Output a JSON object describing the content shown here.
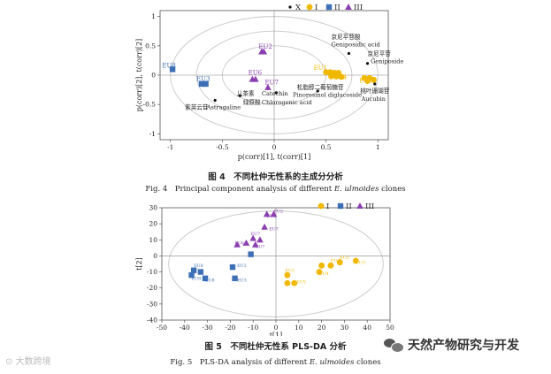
{
  "fig4": {
    "legend": [
      {
        "marker": "dot",
        "color": "#111111",
        "label": "X"
      },
      {
        "marker": "circle",
        "color": "#f0b800",
        "label": "I"
      },
      {
        "marker": "square",
        "color": "#3c6fb6",
        "label": "II"
      },
      {
        "marker": "triangle",
        "color": "#8a3fb0",
        "label": "III"
      }
    ],
    "x_axis_label": "p(corr)[1], t(corr)[1]",
    "y_axis_label": "p(corr)[2], t(corr)[2]",
    "caption_cn": "图 4　不同杜仲无性系的主成分分析",
    "caption_en_prefix": "Fig. 4　Principal component analysis of different ",
    "caption_en_species": "E. ulmoides",
    "caption_en_suffix": " clones",
    "chart_data": {
      "type": "scatter",
      "xlim": [
        -1.1,
        1.1
      ],
      "ylim": [
        -1.1,
        1.1
      ],
      "x_ticks": [
        -1,
        -0.5,
        0,
        0.5,
        1
      ],
      "y_ticks": [
        -1,
        -0.5,
        0,
        0.5,
        1
      ],
      "ellipse_radii": [
        1.0,
        0.75,
        0.5
      ],
      "series": [
        {
          "name": "I",
          "color": "#f0b800",
          "marker": "circle",
          "points": [
            [
              0.5,
              0.05
            ],
            [
              0.54,
              0.05
            ],
            [
              0.58,
              0.04
            ],
            [
              0.62,
              0.04
            ],
            [
              0.55,
              -0.02
            ],
            [
              0.6,
              -0.02
            ],
            [
              0.65,
              -0.03
            ],
            [
              0.87,
              -0.05
            ],
            [
              0.92,
              -0.05
            ],
            [
              0.96,
              -0.08
            ],
            [
              0.9,
              -0.1
            ]
          ],
          "labels": [
            {
              "text": "EU1",
              "x": 0.38,
              "y": 0.09
            },
            {
              "text": "EU4",
              "x": 0.57,
              "y": -0.07
            },
            {
              "text": "EU3",
              "x": 0.82,
              "y": -0.13
            }
          ]
        },
        {
          "name": "II",
          "color": "#3c6fb6",
          "marker": "square",
          "points": [
            [
              -0.98,
              0.1
            ],
            [
              -0.7,
              -0.15
            ],
            [
              -0.66,
              -0.15
            ]
          ],
          "labels": [
            {
              "text": "EU8",
              "x": -1.08,
              "y": 0.13
            },
            {
              "text": "EU3",
              "x": -0.75,
              "y": -0.1
            }
          ]
        },
        {
          "name": "III",
          "color": "#8a3fb0",
          "marker": "triangle",
          "points": [
            [
              -0.12,
              0.4
            ],
            [
              -0.1,
              0.4
            ],
            [
              -0.21,
              -0.07
            ],
            [
              -0.18,
              -0.07
            ],
            [
              -0.06,
              -0.21
            ]
          ],
          "labels": [
            {
              "text": "EU2",
              "x": -0.15,
              "y": 0.45
            },
            {
              "text": "EU6",
              "x": -0.25,
              "y": 0.01
            },
            {
              "text": "EU7",
              "x": -0.09,
              "y": -0.16
            }
          ]
        },
        {
          "name": "X",
          "color": "#111111",
          "marker": "dot",
          "points": [
            [
              0.72,
              0.37
            ],
            [
              0.9,
              0.2
            ],
            [
              0.97,
              -0.15
            ],
            [
              0.42,
              -0.27
            ],
            [
              0.02,
              -0.3
            ],
            [
              -0.33,
              -0.35
            ],
            [
              -0.57,
              -0.43
            ]
          ],
          "labels": [
            {
              "text": "京尼平苷酸",
              "x": 0.55,
              "y": 0.62
            },
            {
              "text": "Geniposidic acid",
              "x": 0.55,
              "y": 0.49
            },
            {
              "text": "京尼平苷",
              "x": 0.9,
              "y": 0.33
            },
            {
              "text": "Geniposide",
              "x": 0.93,
              "y": 0.2
            },
            {
              "text": "桃叶珊瑚苷",
              "x": 0.83,
              "y": -0.3
            },
            {
              "text": "Aucubin",
              "x": 0.84,
              "y": -0.44
            },
            {
              "text": "松脂醇二葡萄糖苷",
              "x": 0.22,
              "y": -0.24
            },
            {
              "text": "Pinoresinol diglucoside",
              "x": 0.18,
              "y": -0.37
            },
            {
              "text": "儿茶素",
              "x": -0.36,
              "y": -0.35
            },
            {
              "text": "Catechin",
              "x": -0.12,
              "y": -0.35
            },
            {
              "text": "绿原酸",
              "x": -0.3,
              "y": -0.5
            },
            {
              "text": "Chlorogenic acid",
              "x": -0.12,
              "y": -0.5
            },
            {
              "text": "紫英云苷",
              "x": -0.86,
              "y": -0.58
            },
            {
              "text": "Astragaline",
              "x": -0.65,
              "y": -0.58
            }
          ]
        }
      ]
    }
  },
  "fig5": {
    "legend": [
      {
        "marker": "circle",
        "color": "#f0b800",
        "label": "I"
      },
      {
        "marker": "square",
        "color": "#3c6fb6",
        "label": "II"
      },
      {
        "marker": "triangle",
        "color": "#8a3fb0",
        "label": "III"
      }
    ],
    "x_axis_label": "t[1]",
    "y_axis_label": "t[2]",
    "caption_cn": "图 5　不同杜仲无性系 PLS-DA 分析",
    "caption_en_prefix": "Fig. 5　PLS-DA analysis of different ",
    "caption_en_species": "E. ulmoides",
    "caption_en_suffix": " clones",
    "chart_data": {
      "type": "scatter",
      "xlim": [
        -50,
        50
      ],
      "ylim": [
        -40,
        30
      ],
      "x_ticks": [
        -50,
        -40,
        -30,
        -20,
        -10,
        0,
        10,
        20,
        30,
        40,
        50
      ],
      "y_ticks": [
        -40,
        -30,
        -20,
        -10,
        0,
        10,
        20,
        30
      ],
      "ellipse": {
        "cx": 0,
        "cy": -5,
        "rx": 47,
        "ry": 33
      },
      "series": [
        {
          "name": "I",
          "color": "#f0b800",
          "marker": "circle",
          "points": [
            [
              5,
              -12
            ],
            [
              5,
              -17
            ],
            [
              8,
              -17
            ],
            [
              19,
              -10
            ],
            [
              20,
              -6
            ],
            [
              24,
              -6
            ],
            [
              28,
              -4
            ],
            [
              35,
              -3
            ]
          ],
          "labels": [
            {
              "text": "EU1",
              "x": 4,
              "y": -10
            },
            {
              "text": "EU5",
              "x": 9,
              "y": -17
            },
            {
              "text": "EU4",
              "x": 19,
              "y": -12
            },
            {
              "text": "EU4",
              "x": 24,
              "y": -4
            },
            {
              "text": "EU5",
              "x": 28,
              "y": -2
            },
            {
              "text": "EU3",
              "x": 35,
              "y": -5
            }
          ]
        },
        {
          "name": "II",
          "color": "#3c6fb6",
          "marker": "square",
          "points": [
            [
              -36,
              -9
            ],
            [
              -33,
              -10
            ],
            [
              -37,
              -12
            ],
            [
              -31,
              -14
            ],
            [
              -19,
              -7
            ],
            [
              -11,
              1
            ],
            [
              -18,
              -14
            ]
          ],
          "labels": [
            {
              "text": "EU8",
              "x": -36,
              "y": -7
            },
            {
              "text": "EU8",
              "x": -37,
              "y": -15
            },
            {
              "text": "EU8",
              "x": -31,
              "y": -16
            },
            {
              "text": "EU3",
              "x": -17,
              "y": -7
            },
            {
              "text": "EU3",
              "x": -17,
              "y": -16
            }
          ]
        },
        {
          "name": "III",
          "color": "#8a3fb0",
          "marker": "triangle",
          "points": [
            [
              -4,
              26
            ],
            [
              -1,
              26
            ],
            [
              -5,
              18
            ],
            [
              -10,
              11
            ],
            [
              -7,
              10
            ],
            [
              -13,
              8
            ],
            [
              -17,
              7
            ],
            [
              -9,
              7
            ]
          ],
          "labels": [
            {
              "text": "EU2",
              "x": -1,
              "y": 27
            },
            {
              "text": "EU6",
              "x": -4,
              "y": 24
            },
            {
              "text": "EU7",
              "x": -11,
              "y": 13
            },
            {
              "text": "EU6",
              "x": -18,
              "y": 7
            },
            {
              "text": "EU7",
              "x": -9,
              "y": 5
            },
            {
              "text": "EU7",
              "x": -3,
              "y": 16
            }
          ]
        }
      ]
    }
  },
  "watermark_left": "⊙ 大数跨境",
  "watermark_right": "天然产物研究与开发"
}
